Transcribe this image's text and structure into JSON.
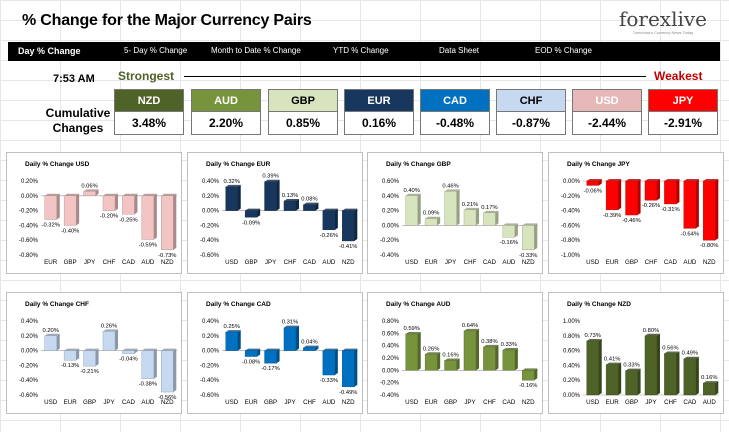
{
  "header": {
    "title": "% Change for the Major Currency Pairs",
    "logo": {
      "brand": "forexlive",
      "tagline": "Tomorrow's Currency News Today"
    }
  },
  "nav": {
    "items": [
      {
        "label": "Day % Change",
        "active": true
      },
      {
        "label": "5- Day % Change",
        "active": false
      },
      {
        "label": "Month to Date % Change",
        "active": false
      },
      {
        "label": "YTD % Change",
        "active": false
      },
      {
        "label": "Data Sheet",
        "active": false
      },
      {
        "label": "EOD % Change",
        "active": false
      }
    ]
  },
  "summary": {
    "time": "7:53 AM",
    "strongest_label": "Strongest",
    "weakest_label": "Weakest",
    "cumulative_label_1": "Cumulative",
    "cumulative_label_2": "Changes",
    "currencies": [
      {
        "code": "NZD",
        "value": "3.48%",
        "color": "#4f6228",
        "text_color": "#ffffff"
      },
      {
        "code": "AUD",
        "value": "2.20%",
        "color": "#77933c",
        "text_color": "#ffffff"
      },
      {
        "code": "GBP",
        "value": "0.85%",
        "color": "#d7e4bd",
        "text_color": "#000000"
      },
      {
        "code": "EUR",
        "value": "0.16%",
        "color": "#17375e",
        "text_color": "#ffffff"
      },
      {
        "code": "CAD",
        "value": "-0.48%",
        "color": "#0070c0",
        "text_color": "#ffffff"
      },
      {
        "code": "CHF",
        "value": "-0.87%",
        "color": "#c6d9f1",
        "text_color": "#000000"
      },
      {
        "code": "USD",
        "value": "-2.44%",
        "color": "#e6b9b8",
        "text_color": "#ffffff"
      },
      {
        "code": "JPY",
        "value": "-2.91%",
        "color": "#ff0000",
        "text_color": "#ffffff"
      }
    ]
  },
  "chart_data": [
    {
      "type": "bar",
      "title": "Daily % Change USD",
      "color": "#f2c4c4",
      "categories": [
        "EUR",
        "GBP",
        "JPY",
        "CHF",
        "CAD",
        "AUD",
        "NZD"
      ],
      "values": [
        -0.32,
        -0.4,
        0.06,
        -0.2,
        -0.25,
        -0.59,
        -0.73
      ],
      "labels": [
        "-0.32%",
        "-0.40%",
        "0.06%",
        "-0.20%",
        "-0.25%",
        "-0.59%",
        "-0.73%"
      ],
      "ylim": [
        -0.8,
        0.2
      ],
      "ticks": [
        "0.20%",
        "0.00%",
        "-0.20%",
        "-0.40%",
        "-0.60%",
        "-0.80%"
      ]
    },
    {
      "type": "bar",
      "title": "Daily % Change EUR",
      "color": "#17375e",
      "categories": [
        "USD",
        "GBP",
        "JPY",
        "CHF",
        "CAD",
        "AUD",
        "NZD"
      ],
      "values": [
        0.32,
        -0.09,
        0.39,
        0.13,
        0.08,
        -0.26,
        -0.41
      ],
      "labels": [
        "0.32%",
        "-0.09%",
        "0.39%",
        "0.13%",
        "0.08%",
        "-0.26%",
        "-0.41%"
      ],
      "ylim": [
        -0.6,
        0.4
      ],
      "ticks": [
        "0.40%",
        "0.20%",
        "0.00%",
        "-0.20%",
        "-0.40%",
        "-0.60%"
      ]
    },
    {
      "type": "bar",
      "title": "Daily % Change GBP",
      "color": "#d7e4bd",
      "categories": [
        "USD",
        "EUR",
        "JPY",
        "CHF",
        "CAD",
        "AUD",
        "NZD"
      ],
      "values": [
        0.4,
        0.09,
        0.46,
        0.21,
        0.17,
        -0.16,
        -0.33
      ],
      "labels": [
        "0.40%",
        "0.09%",
        "0.46%",
        "0.21%",
        "0.17%",
        "-0.16%",
        "-0.33%"
      ],
      "ylim": [
        -0.4,
        0.6
      ],
      "ticks": [
        "0.60%",
        "0.40%",
        "0.20%",
        "0.00%",
        "-0.20%",
        "-0.40%"
      ]
    },
    {
      "type": "bar",
      "title": "Daily % Change JPY",
      "color": "#ff0000",
      "categories": [
        "USD",
        "EUR",
        "GBP",
        "CHF",
        "CAD",
        "AUD",
        "NZD"
      ],
      "values": [
        -0.06,
        -0.39,
        -0.46,
        -0.26,
        -0.31,
        -0.64,
        -0.8
      ],
      "labels": [
        "-0.06%",
        "-0.39%",
        "-0.46%",
        "-0.26%",
        "-0.31%",
        "-0.64%",
        "-0.80%"
      ],
      "ylim": [
        -1.0,
        0.0
      ],
      "ticks": [
        "0.00%",
        "-0.20%",
        "-0.40%",
        "-0.60%",
        "-0.80%",
        "-1.00%"
      ]
    },
    {
      "type": "bar",
      "title": "Daily % Change CHF",
      "color": "#c6d9f1",
      "categories": [
        "USD",
        "EUR",
        "GBP",
        "JPY",
        "CAD",
        "AUD",
        "NZD"
      ],
      "values": [
        0.2,
        -0.13,
        -0.21,
        0.26,
        -0.04,
        -0.38,
        -0.56
      ],
      "labels": [
        "0.20%",
        "-0.13%",
        "-0.21%",
        "0.26%",
        "-0.04%",
        "-0.38%",
        "-0.56%"
      ],
      "ylim": [
        -0.6,
        0.4
      ],
      "ticks": [
        "0.40%",
        "0.20%",
        "0.00%",
        "-0.20%",
        "-0.40%",
        "-0.60%"
      ]
    },
    {
      "type": "bar",
      "title": "Daily % Change CAD",
      "color": "#0070c0",
      "categories": [
        "USD",
        "EUR",
        "GBP",
        "JPY",
        "CHF",
        "AUD",
        "NZD"
      ],
      "values": [
        0.25,
        -0.08,
        -0.17,
        0.31,
        0.04,
        -0.33,
        -0.49
      ],
      "labels": [
        "0.25%",
        "-0.08%",
        "-0.17%",
        "0.31%",
        "0.04%",
        "-0.33%",
        "-0.49%"
      ],
      "ylim": [
        -0.6,
        0.4
      ],
      "ticks": [
        "0.40%",
        "0.20%",
        "0.00%",
        "-0.20%",
        "-0.40%",
        "-0.60%"
      ]
    },
    {
      "type": "bar",
      "title": "Daily % Change AUD",
      "color": "#77933c",
      "categories": [
        "USD",
        "EUR",
        "GBP",
        "JPY",
        "CHF",
        "CAD",
        "NZD"
      ],
      "values": [
        0.59,
        0.26,
        0.16,
        0.64,
        0.38,
        0.33,
        -0.16
      ],
      "labels": [
        "0.59%",
        "0.26%",
        "0.16%",
        "0.64%",
        "0.38%",
        "0.33%",
        "-0.16%"
      ],
      "ylim": [
        -0.4,
        0.8
      ],
      "ticks": [
        "0.80%",
        "0.60%",
        "0.40%",
        "0.20%",
        "0.00%",
        "-0.20%",
        "-0.40%"
      ]
    },
    {
      "type": "bar",
      "title": "Daily % Change NZD",
      "color": "#4f6228",
      "categories": [
        "USD",
        "EUR",
        "GBP",
        "JPY",
        "CHF",
        "CAD",
        "AUD"
      ],
      "values": [
        0.73,
        0.41,
        0.33,
        0.8,
        0.56,
        0.49,
        0.16
      ],
      "labels": [
        "0.73%",
        "0.41%",
        "0.33%",
        "0.80%",
        "0.56%",
        "0.49%",
        "0.16%"
      ],
      "ylim": [
        0,
        1.0
      ],
      "ticks": [
        "1.00%",
        "0.80%",
        "0.60%",
        "0.40%",
        "0.20%",
        "0.00%"
      ]
    }
  ]
}
